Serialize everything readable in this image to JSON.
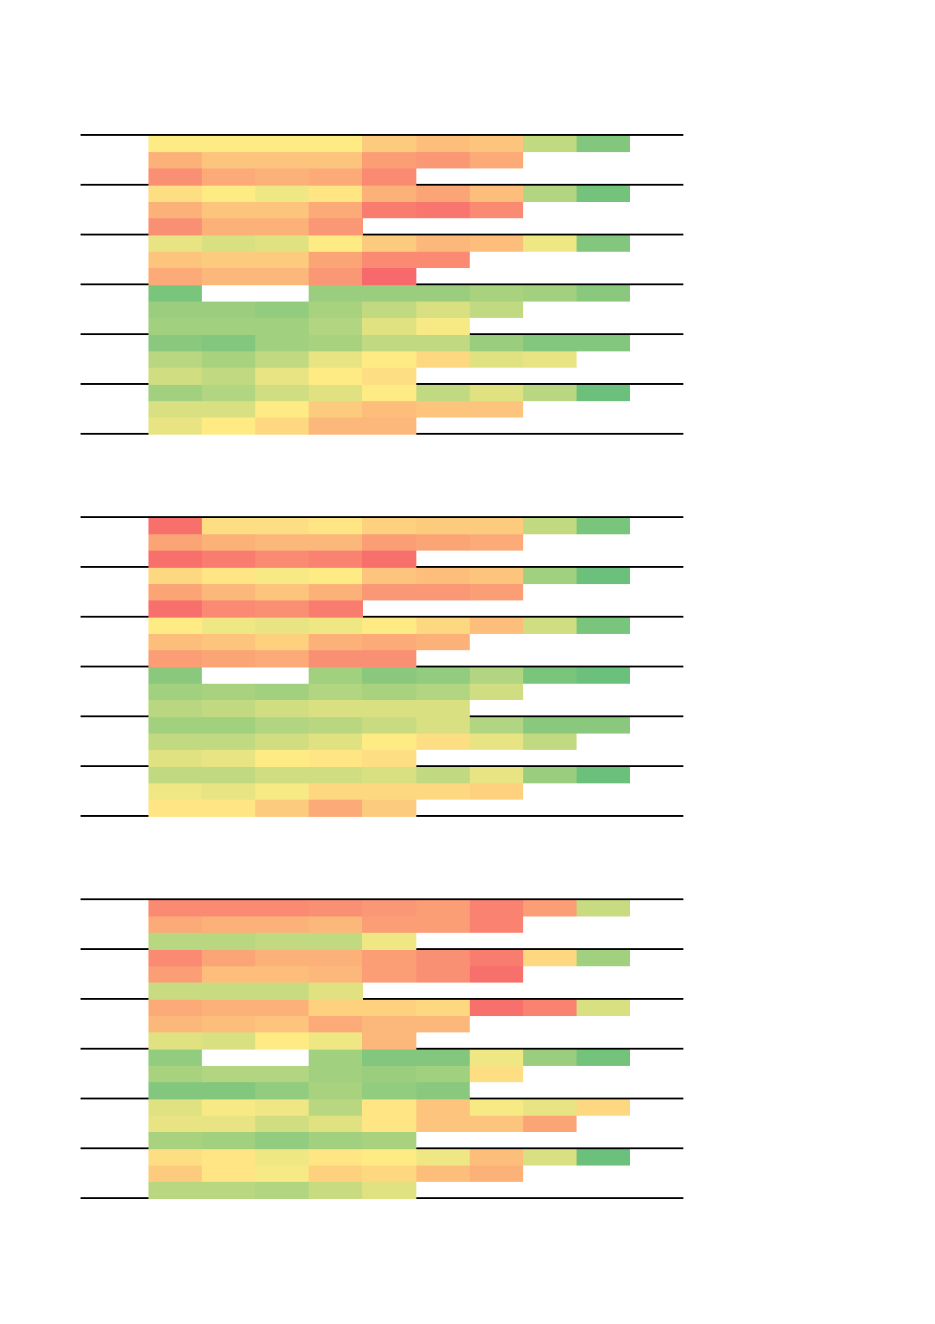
{
  "chart_data": {
    "type": "heatmap",
    "title": "",
    "color_scale": {
      "min": -1,
      "mid": 0,
      "max": 1,
      "min_color": "#F8696B",
      "mid_color": "#FFEB84",
      "max_color": "#63BE7B"
    },
    "panels": [
      {
        "groups": [
          [
            [
              0,
              0,
              0,
              0,
              -0.25,
              -0.35,
              -0.3,
              0.4,
              0.8
            ],
            [
              -0.45,
              -0.3,
              -0.3,
              -0.3,
              -0.6,
              -0.65,
              -0.5
            ],
            [
              -0.7,
              -0.5,
              -0.45,
              -0.5,
              -0.75
            ]
          ],
          [
            [
              -0.1,
              0,
              0.1,
              -0.05,
              -0.45,
              -0.55,
              -0.35,
              0.5,
              0.9
            ],
            [
              -0.45,
              -0.3,
              -0.3,
              -0.5,
              -0.85,
              -0.9,
              -0.75
            ],
            [
              -0.7,
              -0.45,
              -0.45,
              -0.65
            ]
          ],
          [
            [
              0.15,
              0.25,
              0.2,
              0,
              -0.25,
              -0.4,
              -0.35,
              0.1,
              0.8
            ],
            [
              -0.3,
              -0.25,
              -0.25,
              -0.55,
              -0.75,
              -0.75
            ],
            [
              -0.5,
              -0.4,
              -0.4,
              -0.65,
              -1
            ]
          ],
          [
            [
              0.85,
              null,
              null,
              0.65,
              0.65,
              0.65,
              0.55,
              0.6,
              0.75
            ],
            [
              0.65,
              0.65,
              0.7,
              0.55,
              0.4,
              0.25,
              0.4
            ],
            [
              0.6,
              0.6,
              0.6,
              0.5,
              0.2,
              0.05
            ]
          ],
          [
            [
              0.75,
              0.8,
              0.6,
              0.55,
              0.4,
              0.4,
              0.65,
              0.8,
              0.8
            ],
            [
              0.45,
              0.55,
              0.4,
              0.15,
              0,
              -0.15,
              0.2,
              0.15
            ],
            [
              0.3,
              0.4,
              0.15,
              0,
              -0.1
            ]
          ],
          [
            [
              0.6,
              0.5,
              0.3,
              0.2,
              0,
              0.4,
              0.2,
              0.45,
              0.95
            ],
            [
              0.25,
              0.25,
              0,
              -0.25,
              -0.35,
              -0.3,
              -0.3
            ],
            [
              0.15,
              0,
              -0.15,
              -0.4,
              -0.4
            ]
          ]
        ]
      },
      {
        "groups": [
          [
            [
              -0.95,
              -0.1,
              -0.1,
              -0.05,
              -0.2,
              -0.25,
              -0.25,
              0.4,
              0.85
            ],
            [
              -0.55,
              -0.45,
              -0.4,
              -0.4,
              -0.6,
              -0.55,
              -0.5
            ],
            [
              -0.95,
              -0.85,
              -0.75,
              -0.8,
              -0.95
            ]
          ],
          [
            [
              -0.15,
              -0.05,
              0.05,
              0,
              -0.3,
              -0.35,
              -0.3,
              0.6,
              0.95
            ],
            [
              -0.55,
              -0.4,
              -0.3,
              -0.45,
              -0.65,
              -0.65,
              -0.6
            ],
            [
              -0.95,
              -0.75,
              -0.7,
              -0.85
            ]
          ],
          [
            [
              0,
              0.1,
              0.15,
              0.1,
              0,
              -0.15,
              -0.35,
              0.3,
              0.85
            ],
            [
              -0.35,
              -0.3,
              -0.2,
              -0.45,
              -0.5,
              -0.45
            ],
            [
              -0.6,
              -0.55,
              -0.5,
              -0.7,
              -0.7
            ]
          ],
          [
            [
              0.75,
              null,
              null,
              0.6,
              0.75,
              0.7,
              0.5,
              0.85,
              0.95
            ],
            [
              0.6,
              0.55,
              0.6,
              0.5,
              0.55,
              0.5,
              0.3
            ],
            [
              0.45,
              0.4,
              0.3,
              0.25,
              0.25,
              0.25
            ]
          ],
          [
            [
              0.6,
              0.6,
              0.5,
              0.45,
              0.35,
              0.25,
              0.5,
              0.75,
              0.75
            ],
            [
              0.4,
              0.4,
              0.3,
              0.2,
              0,
              -0.1,
              0.15,
              0.4
            ],
            [
              0.2,
              0.15,
              0,
              -0.05,
              -0.1
            ]
          ],
          [
            [
              0.4,
              0.4,
              0.3,
              0.3,
              0.25,
              0.4,
              0.15,
              0.65,
              0.95
            ],
            [
              0.1,
              0.15,
              0.05,
              -0.15,
              -0.15,
              -0.15,
              -0.2
            ],
            [
              -0.05,
              -0.05,
              -0.25,
              -0.5,
              -0.25
            ]
          ]
        ]
      },
      {
        "groups": [
          [
            [
              -0.75,
              -0.75,
              -0.75,
              -0.7,
              -0.65,
              -0.6,
              -0.8,
              -0.6,
              0.35
            ],
            [
              -0.5,
              -0.45,
              -0.45,
              -0.4,
              -0.6,
              -0.6,
              -0.8
            ],
            [
              0.45,
              0.45,
              0.4,
              0.4,
              0.1
            ]
          ],
          [
            [
              -0.75,
              -0.55,
              -0.45,
              -0.45,
              -0.6,
              -0.7,
              -0.85,
              -0.15,
              0.6
            ],
            [
              -0.6,
              -0.35,
              -0.35,
              -0.4,
              -0.6,
              -0.7,
              -0.95
            ],
            [
              0.35,
              0.35,
              0.35,
              0.2
            ]
          ],
          [
            [
              -0.5,
              -0.45,
              -0.45,
              -0.2,
              -0.2,
              -0.15,
              -0.95,
              -0.8,
              0.25
            ],
            [
              -0.4,
              -0.35,
              -0.3,
              -0.5,
              -0.4,
              -0.4
            ],
            [
              0.2,
              0.25,
              0,
              0.1,
              -0.4
            ]
          ],
          [
            [
              0.7,
              null,
              null,
              0.6,
              0.8,
              0.8,
              0.1,
              0.65,
              0.9
            ],
            [
              0.55,
              0.5,
              0.5,
              0.6,
              0.65,
              0.6,
              -0.1
            ],
            [
              0.8,
              0.8,
              0.7,
              0.55,
              0.7,
              0.75
            ]
          ],
          [
            [
              0.2,
              0.05,
              0.1,
              0.45,
              -0.05,
              -0.3,
              0.05,
              0.15,
              -0.15
            ],
            [
              0.15,
              0.15,
              0.3,
              0.2,
              -0.05,
              -0.3,
              -0.3,
              -0.55
            ],
            [
              0.55,
              0.6,
              0.7,
              0.6,
              0.55
            ]
          ],
          [
            [
              -0.1,
              -0.05,
              0.1,
              -0.05,
              0,
              0.1,
              -0.35,
              0.25,
              0.95
            ],
            [
              -0.25,
              -0.05,
              0.05,
              -0.2,
              -0.15,
              -0.35,
              -0.45
            ],
            [
              0.45,
              0.45,
              0.5,
              0.35,
              0.2
            ]
          ]
        ]
      }
    ]
  }
}
